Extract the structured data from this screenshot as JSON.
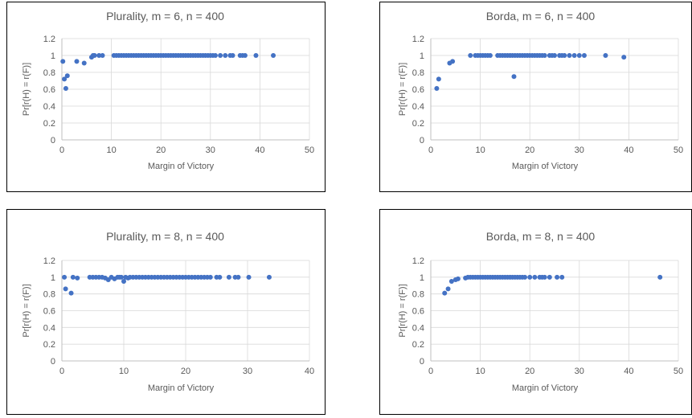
{
  "chart_data": [
    {
      "type": "scatter",
      "title": "Plurality, m = 6, n = 400",
      "xlabel": "Margin of Victory",
      "ylabel": "Pr[r(H) = r(F)]",
      "xlim": [
        0,
        50
      ],
      "ylim": [
        0,
        1.2
      ],
      "xticks": [
        "0",
        "10",
        "20",
        "30",
        "40",
        "50"
      ],
      "yticks": [
        "0",
        "0.2",
        "0.4",
        "0.6",
        "0.8",
        "1",
        "1.2"
      ],
      "grid": true,
      "color": "#4472c4",
      "x": [
        0.2,
        0.5,
        0.8,
        1.1,
        3.0,
        4.5,
        6.0,
        6.3,
        6.6,
        7.5,
        8.2,
        10.5,
        11.0,
        11.5,
        12.0,
        12.5,
        13.0,
        13.5,
        14.0,
        14.5,
        15.0,
        15.5,
        16.0,
        16.5,
        17.0,
        17.5,
        18.0,
        18.5,
        19.0,
        19.5,
        20.0,
        20.5,
        21.0,
        21.5,
        22.0,
        22.5,
        23.0,
        23.5,
        24.0,
        24.5,
        25.0,
        25.5,
        26.0,
        26.5,
        27.0,
        27.5,
        28.0,
        28.5,
        29.0,
        29.5,
        30.0,
        30.5,
        31.0,
        32.0,
        33.0,
        34.0,
        34.5,
        36.0,
        36.5,
        37.0,
        39.2,
        42.7
      ],
      "y": [
        0.93,
        0.72,
        0.61,
        0.76,
        0.93,
        0.91,
        0.98,
        1.0,
        1.0,
        1.0,
        1.0,
        1.0,
        1.0,
        1.0,
        1.0,
        1.0,
        1.0,
        1.0,
        1.0,
        1.0,
        1.0,
        1.0,
        1.0,
        1.0,
        1.0,
        1.0,
        1.0,
        1.0,
        1.0,
        1.0,
        1.0,
        1.0,
        1.0,
        1.0,
        1.0,
        1.0,
        1.0,
        1.0,
        1.0,
        1.0,
        1.0,
        1.0,
        1.0,
        1.0,
        1.0,
        1.0,
        1.0,
        1.0,
        1.0,
        1.0,
        1.0,
        1.0,
        1.0,
        1.0,
        1.0,
        1.0,
        1.0,
        1.0,
        1.0,
        1.0,
        1.0,
        1.0
      ]
    },
    {
      "type": "scatter",
      "title": "Borda, m = 6, n = 400",
      "xlabel": "Margin of Victory",
      "ylabel": "Pr[r(H) = r(F)]",
      "xlim": [
        0,
        50
      ],
      "ylim": [
        0,
        1.2
      ],
      "xticks": [
        "0",
        "10",
        "20",
        "30",
        "40",
        "50"
      ],
      "yticks": [
        "0",
        "0.2",
        "0.4",
        "0.6",
        "0.8",
        "1",
        "1.2"
      ],
      "grid": true,
      "color": "#4472c4",
      "x": [
        1.2,
        1.6,
        3.8,
        4.4,
        8.0,
        9.0,
        9.5,
        10.0,
        10.5,
        11.0,
        11.5,
        12.0,
        13.5,
        14.0,
        14.5,
        15.0,
        15.5,
        16.0,
        16.5,
        16.8,
        17.0,
        17.5,
        18.0,
        18.5,
        19.0,
        19.5,
        20.0,
        20.5,
        21.0,
        21.5,
        22.0,
        22.5,
        23.0,
        24.0,
        24.5,
        25.0,
        26.0,
        26.5,
        27.0,
        28.0,
        29.0,
        30.0,
        31.0,
        35.3,
        39.0
      ],
      "y": [
        0.61,
        0.72,
        0.91,
        0.93,
        1.0,
        1.0,
        1.0,
        1.0,
        1.0,
        1.0,
        1.0,
        1.0,
        1.0,
        1.0,
        1.0,
        1.0,
        1.0,
        1.0,
        1.0,
        0.75,
        1.0,
        1.0,
        1.0,
        1.0,
        1.0,
        1.0,
        1.0,
        1.0,
        1.0,
        1.0,
        1.0,
        1.0,
        1.0,
        1.0,
        1.0,
        1.0,
        1.0,
        1.0,
        1.0,
        1.0,
        1.0,
        1.0,
        1.0,
        1.0,
        0.98
      ]
    },
    {
      "type": "scatter",
      "title": "Plurality, m = 8, n = 400",
      "xlabel": "Margin of Victory",
      "ylabel": "Pr[r(H) = r(F)]",
      "xlim": [
        0,
        40
      ],
      "ylim": [
        0,
        1.2
      ],
      "xticks": [
        "0",
        "10",
        "20",
        "30",
        "40"
      ],
      "yticks": [
        "0",
        "0.2",
        "0.4",
        "0.6",
        "0.8",
        "1",
        "1.2"
      ],
      "grid": true,
      "color": "#4472c4",
      "x": [
        0.4,
        0.6,
        1.5,
        1.8,
        2.5,
        4.5,
        5.0,
        5.5,
        6.0,
        6.5,
        7.0,
        7.5,
        8.0,
        8.5,
        9.0,
        9.3,
        9.6,
        10.0,
        10.3,
        10.7,
        11.0,
        11.5,
        12.0,
        12.5,
        13.0,
        13.5,
        14.0,
        14.5,
        15.0,
        15.5,
        16.0,
        16.5,
        17.0,
        17.5,
        18.0,
        18.5,
        19.0,
        19.5,
        20.0,
        20.5,
        21.0,
        21.5,
        22.0,
        22.5,
        23.0,
        23.5,
        24.0,
        25.0,
        25.5,
        27.0,
        28.0,
        28.5,
        30.2,
        33.5
      ],
      "y": [
        1.0,
        0.86,
        0.81,
        1.0,
        0.99,
        1.0,
        1.0,
        1.0,
        1.0,
        1.0,
        0.99,
        0.97,
        1.0,
        0.98,
        1.0,
        1.0,
        1.0,
        0.95,
        1.0,
        0.99,
        1.0,
        1.0,
        1.0,
        1.0,
        1.0,
        1.0,
        1.0,
        1.0,
        1.0,
        1.0,
        1.0,
        1.0,
        1.0,
        1.0,
        1.0,
        1.0,
        1.0,
        1.0,
        1.0,
        1.0,
        1.0,
        1.0,
        1.0,
        1.0,
        1.0,
        1.0,
        1.0,
        1.0,
        1.0,
        1.0,
        1.0,
        1.0,
        1.0,
        1.0
      ]
    },
    {
      "type": "scatter",
      "title": "Borda, m = 8, n = 400",
      "xlabel": "Margin of Victory",
      "ylabel": "Pr[r(H) = r(F)]",
      "xlim": [
        0,
        50
      ],
      "ylim": [
        0,
        1.2
      ],
      "xticks": [
        "0",
        "10",
        "20",
        "30",
        "40",
        "50"
      ],
      "yticks": [
        "0",
        "0.2",
        "0.4",
        "0.6",
        "0.8",
        "1",
        "1.2"
      ],
      "grid": true,
      "color": "#4472c4",
      "x": [
        2.8,
        3.5,
        4.2,
        5.0,
        5.5,
        7.0,
        7.5,
        8.0,
        8.5,
        9.0,
        9.5,
        10.0,
        10.5,
        11.0,
        11.5,
        12.0,
        12.5,
        13.0,
        13.5,
        14.0,
        14.5,
        15.0,
        15.5,
        16.0,
        16.5,
        17.0,
        17.5,
        18.0,
        18.5,
        19.0,
        20.0,
        21.0,
        22.0,
        22.5,
        23.0,
        24.0,
        25.5,
        26.5,
        46.3
      ],
      "y": [
        0.81,
        0.86,
        0.95,
        0.97,
        0.98,
        0.99,
        1.0,
        1.0,
        1.0,
        1.0,
        1.0,
        1.0,
        1.0,
        1.0,
        1.0,
        1.0,
        1.0,
        1.0,
        1.0,
        1.0,
        1.0,
        1.0,
        1.0,
        1.0,
        1.0,
        1.0,
        1.0,
        1.0,
        1.0,
        1.0,
        1.0,
        1.0,
        1.0,
        1.0,
        1.0,
        1.0,
        1.0,
        1.0,
        1.0
      ]
    }
  ]
}
